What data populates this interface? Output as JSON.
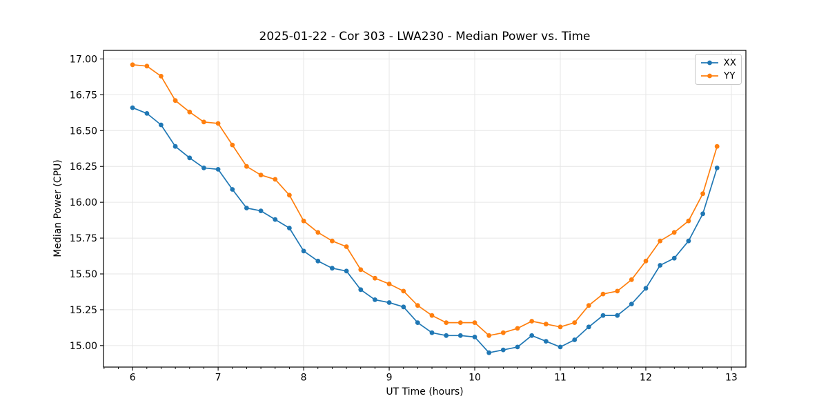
{
  "chart_data": {
    "type": "line",
    "title": "2025-01-22 - Cor 303 - LWA230 - Median Power vs. Time",
    "xlabel": "UT Time (hours)",
    "ylabel": "Median Power (CPU)",
    "xlim": [
      5.66,
      13.17
    ],
    "ylim": [
      14.85,
      17.06
    ],
    "x_ticks": [
      6,
      7,
      8,
      9,
      10,
      11,
      12,
      13
    ],
    "y_ticks": [
      15.0,
      15.25,
      15.5,
      15.75,
      16.0,
      16.25,
      16.5,
      16.75,
      17.0
    ],
    "x_minor_ticks_per_hour": 6,
    "grid": true,
    "grid_color": "#e6e6e6",
    "spine_color": "#000000",
    "legend_position": "upper right",
    "x": [
      6.0,
      6.167,
      6.333,
      6.5,
      6.667,
      6.833,
      7.0,
      7.167,
      7.333,
      7.5,
      7.667,
      7.833,
      8.0,
      8.167,
      8.333,
      8.5,
      8.667,
      8.833,
      9.0,
      9.167,
      9.333,
      9.5,
      9.667,
      9.833,
      10.0,
      10.167,
      10.333,
      10.5,
      10.667,
      10.833,
      11.0,
      11.167,
      11.333,
      11.5,
      11.667,
      11.833,
      12.0,
      12.167,
      12.333,
      12.5,
      12.667,
      12.833
    ],
    "series": [
      {
        "name": "XX",
        "color": "#1f77b4",
        "values": [
          16.66,
          16.62,
          16.54,
          16.39,
          16.31,
          16.24,
          16.23,
          16.09,
          15.96,
          15.94,
          15.88,
          15.82,
          15.66,
          15.59,
          15.54,
          15.52,
          15.39,
          15.32,
          15.3,
          15.27,
          15.16,
          15.09,
          15.07,
          15.07,
          15.06,
          14.95,
          14.97,
          14.99,
          15.07,
          15.03,
          14.99,
          15.04,
          15.13,
          15.21,
          15.21,
          15.29,
          15.4,
          15.56,
          15.61,
          15.73,
          15.92,
          16.24
        ]
      },
      {
        "name": "YY",
        "color": "#ff7f0e",
        "values": [
          16.96,
          16.95,
          16.88,
          16.71,
          16.63,
          16.56,
          16.55,
          16.4,
          16.25,
          16.19,
          16.16,
          16.05,
          15.87,
          15.79,
          15.73,
          15.69,
          15.53,
          15.47,
          15.43,
          15.38,
          15.28,
          15.21,
          15.16,
          15.16,
          15.16,
          15.07,
          15.09,
          15.12,
          15.17,
          15.15,
          15.13,
          15.16,
          15.28,
          15.36,
          15.38,
          15.46,
          15.59,
          15.73,
          15.79,
          15.87,
          16.06,
          16.39
        ]
      }
    ]
  }
}
